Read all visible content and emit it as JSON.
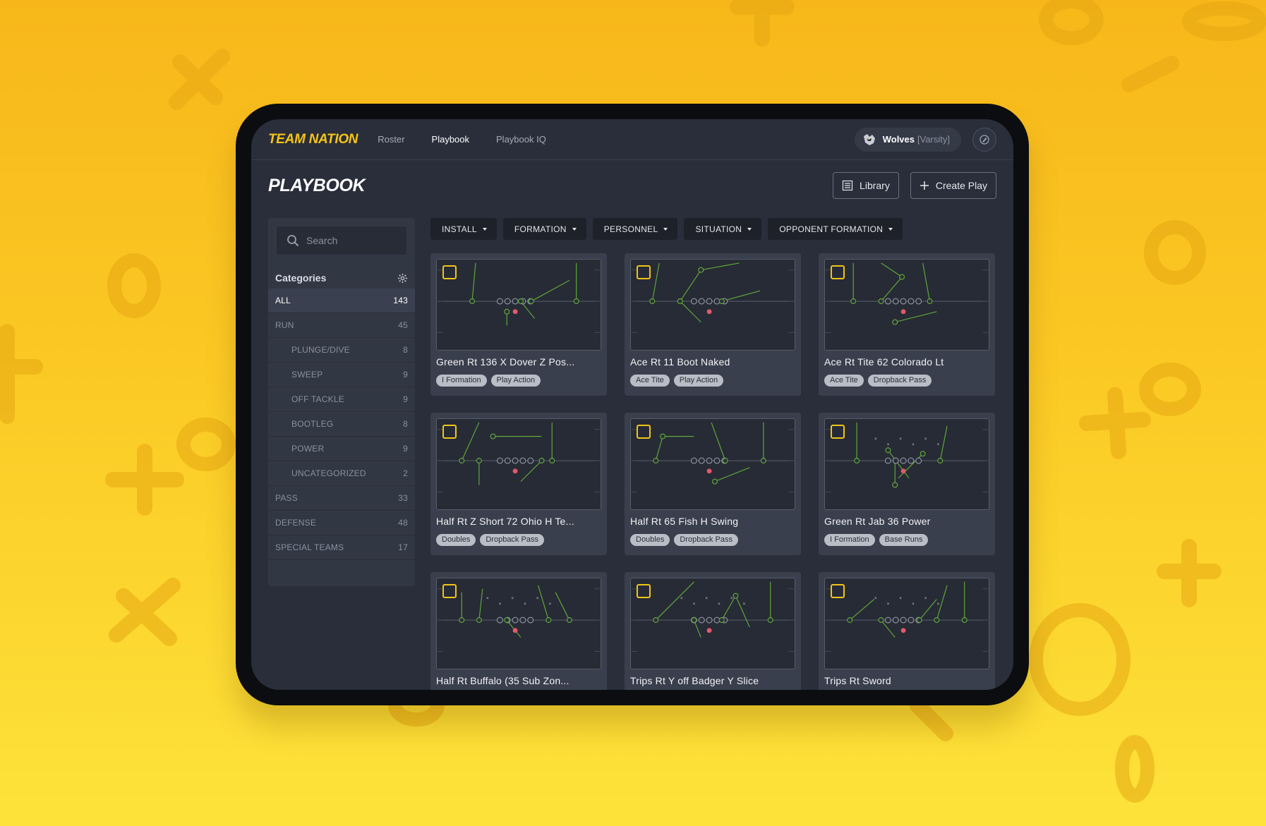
{
  "app": {
    "logo": "TEAM NATION",
    "nav": [
      {
        "label": "Roster",
        "active": false
      },
      {
        "label": "Playbook",
        "active": true
      },
      {
        "label": "Playbook IQ",
        "active": false
      }
    ],
    "team": {
      "name": "Wolves",
      "level": "[Varsity]"
    }
  },
  "header": {
    "title": "PLAYBOOK",
    "library_label": "Library",
    "create_label": "Create Play"
  },
  "sidebar": {
    "search_placeholder": "Search",
    "categories_title": "Categories",
    "items": [
      {
        "label": "ALL",
        "count": "143",
        "level": 0,
        "active": true
      },
      {
        "label": "RUN",
        "count": "45",
        "level": 0,
        "active": false
      },
      {
        "label": "PLUNGE/DIVE",
        "count": "8",
        "level": 1,
        "active": false
      },
      {
        "label": "SWEEP",
        "count": "9",
        "level": 1,
        "active": false
      },
      {
        "label": "OFF TACKLE",
        "count": "9",
        "level": 1,
        "active": false
      },
      {
        "label": "BOOTLEG",
        "count": "8",
        "level": 1,
        "active": false
      },
      {
        "label": "POWER",
        "count": "9",
        "level": 1,
        "active": false
      },
      {
        "label": "UNCATEGORIZED",
        "count": "2",
        "level": 1,
        "active": false
      },
      {
        "label": "PASS",
        "count": "33",
        "level": 0,
        "active": false
      },
      {
        "label": "DEFENSE",
        "count": "48",
        "level": 0,
        "active": false
      },
      {
        "label": "SPECIAL TEAMS",
        "count": "17",
        "level": 0,
        "active": false
      }
    ]
  },
  "filters": [
    "INSTALL",
    "FORMATION",
    "PERSONNEL",
    "SITUATION",
    "OPPONENT FORMATION"
  ],
  "plays": [
    {
      "title": "Green Rt 136 X Dover Z Pos...",
      "tags": [
        "I Formation",
        "Play Action"
      ]
    },
    {
      "title": "Ace Rt 11 Boot Naked",
      "tags": [
        "Ace Tite",
        "Play Action"
      ]
    },
    {
      "title": "Ace Rt Tite 62 Colorado Lt",
      "tags": [
        "Ace Tite",
        "Dropback Pass"
      ]
    },
    {
      "title": "Half Rt Z Short 72 Ohio H Te...",
      "tags": [
        "Doubles",
        "Dropback Pass"
      ]
    },
    {
      "title": "Half Rt 65 Fish H Swing",
      "tags": [
        "Doubles",
        "Dropback Pass"
      ]
    },
    {
      "title": "Green Rt Jab 36 Power",
      "tags": [
        "I Formation",
        "Base Runs"
      ]
    },
    {
      "title": "Half Rt Buffalo (35 Sub Zon...",
      "tags": []
    },
    {
      "title": "Trips Rt Y off Badger Y Slice",
      "tags": []
    },
    {
      "title": "Trips Rt Sword",
      "tags": []
    }
  ],
  "colors": {
    "accent": "#f5c518",
    "background": "#fbc924",
    "screen": "#2a2e3a",
    "route": "#5fa83a",
    "defender": "#e05a6a"
  },
  "icons": {
    "search": "search-icon",
    "settings": "gear-icon",
    "library": "list-icon",
    "create": "plus-icon",
    "team": "wolf-logo-icon",
    "profile": "pen-icon"
  }
}
